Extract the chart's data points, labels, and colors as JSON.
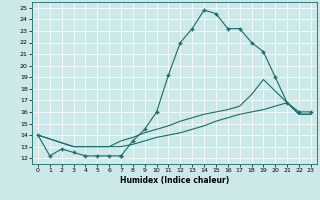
{
  "xlabel": "Humidex (Indice chaleur)",
  "xlim": [
    -0.5,
    23.5
  ],
  "ylim": [
    11.5,
    25.5
  ],
  "xticks": [
    0,
    1,
    2,
    3,
    4,
    5,
    6,
    7,
    8,
    9,
    10,
    11,
    12,
    13,
    14,
    15,
    16,
    17,
    18,
    19,
    20,
    21,
    22,
    23
  ],
  "yticks": [
    12,
    13,
    14,
    15,
    16,
    17,
    18,
    19,
    20,
    21,
    22,
    23,
    24,
    25
  ],
  "bg_color": "#cce8e8",
  "line_color": "#1a6b6b",
  "grid_color": "#ffffff",
  "line1_x": [
    0,
    1,
    2,
    3,
    4,
    5,
    6,
    7
  ],
  "line1_y": [
    14.0,
    12.2,
    12.8,
    12.5,
    12.2,
    12.2,
    12.2,
    12.2
  ],
  "line2_x": [
    7,
    8,
    9,
    10,
    11,
    12,
    13,
    14,
    15,
    16,
    17,
    18,
    19,
    20,
    21,
    22,
    23
  ],
  "line2_y": [
    12.2,
    13.5,
    14.5,
    16.0,
    19.2,
    22.0,
    23.2,
    24.8,
    24.5,
    23.2,
    23.2,
    22.0,
    21.2,
    19.0,
    16.8,
    16.0,
    16.0
  ],
  "line3_x": [
    0,
    3,
    6,
    7,
    8,
    9,
    10,
    11,
    12,
    13,
    14,
    15,
    16,
    17,
    18,
    19,
    20,
    21,
    22,
    23
  ],
  "line3_y": [
    14.0,
    13.0,
    13.0,
    13.0,
    13.2,
    13.5,
    13.8,
    14.0,
    14.2,
    14.5,
    14.8,
    15.2,
    15.5,
    15.8,
    16.0,
    16.2,
    16.5,
    16.8,
    15.8,
    15.8
  ],
  "line4_x": [
    0,
    3,
    6,
    7,
    8,
    9,
    10,
    11,
    12,
    13,
    14,
    15,
    16,
    17,
    18,
    19,
    20,
    21,
    22,
    23
  ],
  "line4_y": [
    14.0,
    13.0,
    13.0,
    13.5,
    13.8,
    14.2,
    14.5,
    14.8,
    15.2,
    15.5,
    15.8,
    16.0,
    16.2,
    16.5,
    17.5,
    18.8,
    17.8,
    16.8,
    15.8,
    15.8
  ]
}
